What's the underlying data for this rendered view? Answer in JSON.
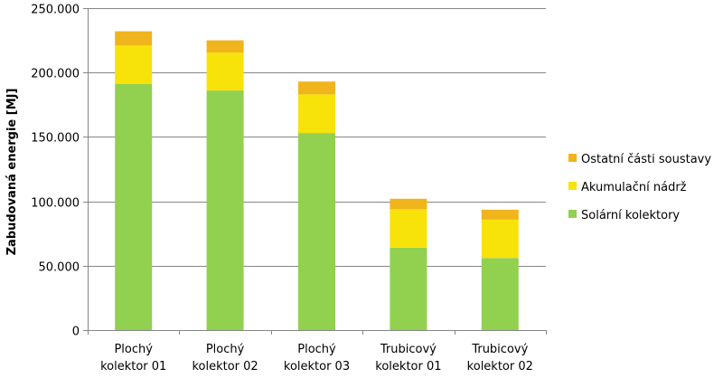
{
  "chart_data": {
    "type": "bar",
    "stacked": true,
    "categories": [
      [
        "Plochý",
        "kolektor 01"
      ],
      [
        "Plochý",
        "kolektor 02"
      ],
      [
        "Plochý",
        "kolektor 03"
      ],
      [
        "Trubicový",
        "kolektor 01"
      ],
      [
        "Trubicový",
        "kolektor 02"
      ]
    ],
    "ylabel": "Zabudovaná energie [MJ]",
    "xlabel": "",
    "title": "",
    "ylim": [
      0,
      250000
    ],
    "yticks": [
      0,
      50000,
      100000,
      150000,
      200000,
      250000
    ],
    "ytick_labels": [
      "0",
      "50.000",
      "100.000",
      "150.000",
      "200.000",
      "250.000"
    ],
    "grid": true,
    "legend_position": "right",
    "series": [
      {
        "name": "Solární kolektory",
        "color": "#92d050",
        "values": [
          191000,
          186000,
          153000,
          64000,
          56000
        ]
      },
      {
        "name": "Akumulační nádrž",
        "color": "#f7e20a",
        "values": [
          30000,
          29500,
          30000,
          30000,
          30000
        ]
      },
      {
        "name": "Ostatní části soustavy",
        "color": "#f0b41c",
        "values": [
          11000,
          9500,
          10000,
          8000,
          7500
        ]
      }
    ]
  }
}
